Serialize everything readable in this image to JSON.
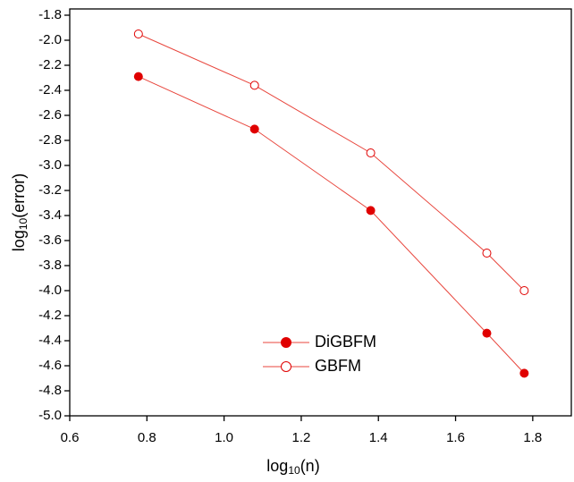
{
  "chart_data": {
    "type": "line",
    "xlabel": [
      "log",
      "10",
      "(n)"
    ],
    "ylabel": [
      "log",
      "10",
      "(error)"
    ],
    "x": [
      0.778,
      1.079,
      1.38,
      1.681,
      1.778
    ],
    "series": [
      {
        "name": "DiGBFM",
        "color": "#e8453c",
        "marker": "filled",
        "values": [
          -2.29,
          -2.71,
          -3.36,
          -4.34,
          -4.66
        ]
      },
      {
        "name": "GBFM",
        "color": "#e8453c",
        "marker": "open",
        "values": [
          -1.95,
          -2.36,
          -2.9,
          -3.7,
          -4.0
        ]
      }
    ],
    "xlim": [
      0.6,
      1.9
    ],
    "xticks": [
      0.6,
      0.8,
      {
        "value": 1.0,
        "label": "1.0"
      },
      1.2,
      1.4,
      1.6,
      1.8
    ],
    "ylim": [
      -5.0,
      -1.75
    ],
    "yticks": [
      -1.8,
      {
        "value": -2.0,
        "label": "-2.0"
      },
      -2.2,
      -2.4,
      -2.6,
      -2.8,
      {
        "value": -3.0,
        "label": "-3.0"
      },
      -3.2,
      -3.4,
      -3.6,
      -3.8,
      {
        "value": -4.0,
        "label": "-4.0"
      },
      -4.2,
      -4.4,
      -4.6,
      -4.8,
      {
        "value": -5.0,
        "label": "-5.0"
      }
    ],
    "grid": false
  }
}
